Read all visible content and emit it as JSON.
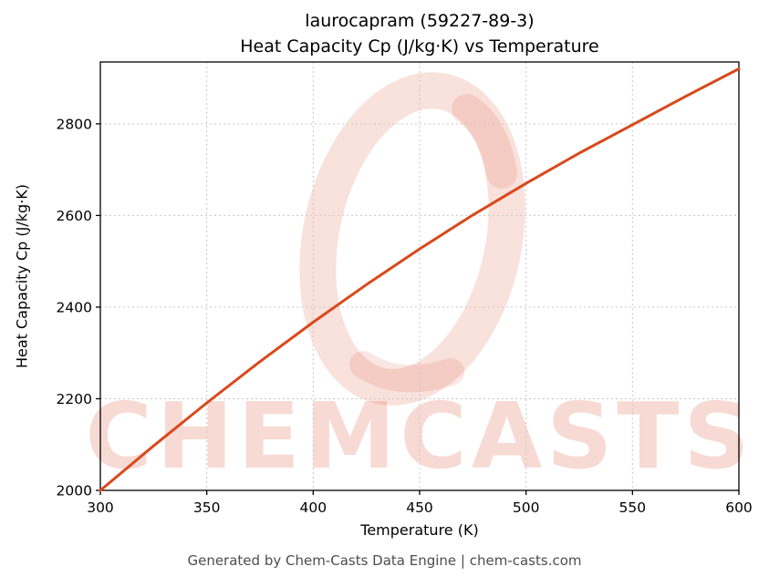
{
  "title": {
    "line1": "laurocapram (59227-89-3)",
    "line2": "Heat Capacity Cp (J/kg·K) vs Temperature"
  },
  "watermark": {
    "text": "CHEMCASTS",
    "color": "#d84623",
    "logo": "paint-swirl-ring"
  },
  "footer": "Generated by Chem-Casts Data Engine | chem-casts.com",
  "chart_data": {
    "type": "line",
    "title": "laurocapram (59227-89-3) Heat Capacity Cp (J/kg·K) vs Temperature",
    "xlabel": "Temperature (K)",
    "ylabel": "Heat Capacity Cp (J/kg·K)",
    "xlim": [
      300,
      600
    ],
    "ylim": [
      2000,
      2935
    ],
    "x_ticks": [
      300,
      350,
      400,
      450,
      500,
      550,
      600
    ],
    "y_ticks": [
      2000,
      2200,
      2400,
      2600,
      2800
    ],
    "grid": true,
    "grid_color": "#c8c8c8",
    "line_color": "#d9491c",
    "series": [
      {
        "name": "Heat Capacity Cp",
        "x": [
          300,
          325,
          350,
          375,
          400,
          425,
          450,
          475,
          500,
          525,
          550,
          575,
          600
        ],
        "y": [
          2000,
          2097,
          2191,
          2281,
          2367,
          2449,
          2527,
          2601,
          2670,
          2736,
          2798,
          2860,
          2920
        ]
      }
    ]
  }
}
